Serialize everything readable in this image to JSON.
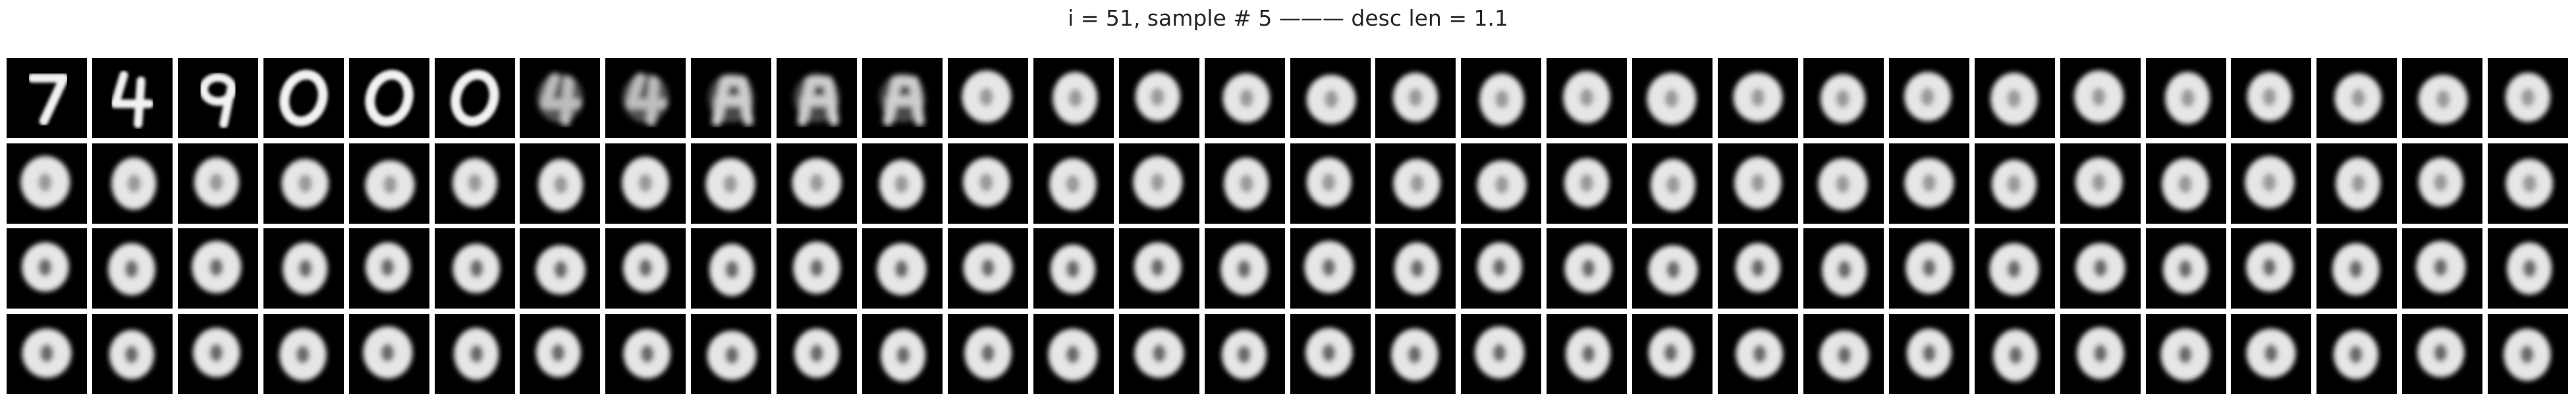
{
  "figure": {
    "title": "i = 51, sample # 5 ——— desc len = 1.1"
  },
  "grid": {
    "rows": 4,
    "cols": 30,
    "tiles": [
      [
        "7",
        "4",
        "9",
        "0",
        "0",
        "0",
        "blur-4",
        "blur-4",
        "blur-A",
        "blur-A",
        "blur-A",
        "blob",
        "blob",
        "blob",
        "blob",
        "blob",
        "blob",
        "blob",
        "blob",
        "blob",
        "blob",
        "blob",
        "blob",
        "blob",
        "blob",
        "blob",
        "blob",
        "blob",
        "blob",
        "blob"
      ],
      [
        "blob",
        "blob",
        "blob",
        "blob",
        "blob",
        "blob",
        "blob",
        "blob",
        "blob",
        "blob",
        "blob",
        "blob",
        "blob",
        "blob",
        "blob",
        "blob",
        "blob",
        "blob",
        "blob",
        "blob",
        "blob",
        "blob",
        "blob",
        "blob",
        "blob",
        "blob",
        "blob",
        "blob",
        "blob",
        "blob"
      ],
      [
        "blob",
        "blob",
        "blob",
        "blob",
        "blob",
        "blob",
        "blob",
        "blob",
        "blob",
        "blob",
        "blob",
        "blob",
        "blob",
        "blob",
        "blob",
        "blob",
        "blob",
        "blob",
        "blob",
        "blob",
        "blob",
        "blob",
        "blob",
        "blob",
        "blob",
        "blob",
        "blob",
        "blob",
        "blob",
        "blob"
      ],
      [
        "blob",
        "blob",
        "blob",
        "blob",
        "blob",
        "blob",
        "blob",
        "blob",
        "blob",
        "blob",
        "blob",
        "blob",
        "blob",
        "blob",
        "blob",
        "blob",
        "blob",
        "blob",
        "blob",
        "blob",
        "blob",
        "blob",
        "blob",
        "blob",
        "blob",
        "blob",
        "blob",
        "blob",
        "blob",
        "blob"
      ]
    ]
  }
}
